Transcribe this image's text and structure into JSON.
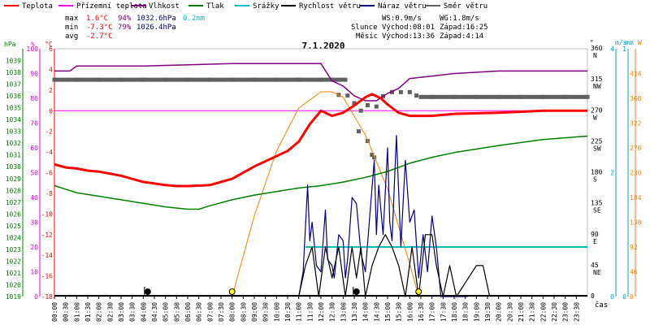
{
  "legend": [
    {
      "label": "Teplota",
      "color": "#ff0000"
    },
    {
      "label": "Přízemní teplota",
      "color": "#ff00ff"
    },
    {
      "label": "Vlhkost",
      "color": "#800080"
    },
    {
      "label": "Tlak",
      "color": "#008000"
    },
    {
      "label": "Srážky",
      "color": "#00c0c0"
    },
    {
      "label": "Rychlost větru",
      "color": "#000000"
    },
    {
      "label": "Náraz větru",
      "color": "#000080"
    },
    {
      "label": "Směr větru",
      "color": "#606060"
    }
  ],
  "stats": {
    "max_label": "max",
    "max_temp": "1.6°C",
    "max_hum": "94%",
    "max_press": "1032.6hPa",
    "max_rain": "0.2mm",
    "min_label": "min",
    "min_temp": "-7.3°C",
    "min_hum": "79%",
    "min_press": "1026.4hPa",
    "avg_label": "avg",
    "avg_temp": "-2.7°C",
    "ws": "WS:0.9m/s",
    "wg": "WG:1.8m/s",
    "sun_label": "Slunce",
    "sun_rise": "Východ:08:01",
    "sun_set": "Západ:16:25",
    "moon_label": "Měsíc",
    "moon_rise": "Východ:13:36",
    "moon_set": "Západ:4:14"
  },
  "title": "7.1.2020",
  "axis_units": {
    "hpa": "hPa",
    "pct": "%",
    "degc": "°C",
    "deg": "°",
    "ms": "m/s",
    "mm": "mm",
    "w": "W",
    "time": "čas"
  },
  "colors": {
    "temp": "#ff0000",
    "ground": "#ff00ff",
    "hum": "#800080",
    "press": "#008000",
    "rain": "#00c0c0",
    "wind": "#000000",
    "gust": "#000080",
    "dir": "#606060",
    "solar": "#ff8000",
    "axis_press": "#008000",
    "axis_hum": "#e000e0",
    "axis_temp": "#ff0000",
    "axis_ms": "#00a0c0",
    "axis_w": "#ff8000",
    "marker_sun": "#ffff00"
  },
  "chart_data": {
    "type": "line",
    "title": "7.1.2020",
    "x_range": [
      0,
      24
    ],
    "x_ticks": [
      "00:00",
      "00:30",
      "01:00",
      "01:30",
      "02:00",
      "02:30",
      "03:00",
      "03:30",
      "04:00",
      "04:30",
      "05:00",
      "05:30",
      "06:00",
      "06:30",
      "07:00",
      "07:30",
      "08:00",
      "08:30",
      "09:00",
      "09:30",
      "10:00",
      "10:30",
      "11:00",
      "11:30",
      "12:00",
      "12:30",
      "13:00",
      "13:30",
      "14:00",
      "14:30",
      "15:00",
      "15:30",
      "16:00",
      "16:30",
      "17:00",
      "17:30",
      "18:00",
      "18:30",
      "19:00",
      "19:30",
      "20:00",
      "20:30",
      "21:00",
      "21:30",
      "22:00",
      "22:30",
      "23:00",
      "23:30"
    ],
    "axes": {
      "pressure_hpa": {
        "range": [
          1019,
          1040
        ],
        "ticks": [
          "1039",
          "1038",
          "1037",
          "1036",
          "1035",
          "1034",
          "1033",
          "1032",
          "1031",
          "1030",
          "1029",
          "1028",
          "1027",
          "1026",
          "1025",
          "1024",
          "1023",
          "1022",
          "1021",
          "1020",
          "1019"
        ]
      },
      "humidity_pct": {
        "range": [
          0,
          100
        ],
        "ticks": [
          "100",
          "90",
          "80",
          "70",
          "60",
          "50",
          "40",
          "30",
          "20",
          "10",
          "0"
        ]
      },
      "temperature_c": {
        "range": [
          -18,
          6
        ],
        "ticks": [
          "6",
          "4",
          "2",
          "0",
          "-2",
          "-4",
          "-6",
          "-8",
          "-10",
          "-12",
          "-14",
          "-16",
          "-18"
        ]
      },
      "wind_dir_deg": {
        "range": [
          0,
          360
        ],
        "ticks": [
          {
            "deg": "360",
            "dir": "N"
          },
          {
            "deg": "315",
            "dir": "NW"
          },
          {
            "deg": "270",
            "dir": "W"
          },
          {
            "deg": "225",
            "dir": "SW"
          },
          {
            "deg": "180",
            "dir": "S"
          },
          {
            "deg": "135",
            "dir": "SE"
          },
          {
            "deg": "90",
            "dir": "E"
          },
          {
            "deg": "45",
            "dir": "NE"
          },
          {
            "deg": "0",
            "dir": ""
          }
        ]
      },
      "wind_ms": {
        "range": [
          0,
          4
        ],
        "ticks": [
          "4",
          "2",
          "0"
        ]
      },
      "rain_mm": {
        "range": [
          0,
          1
        ],
        "ticks": [
          "1",
          "0"
        ]
      },
      "solar_w": {
        "range": [
          0,
          460
        ],
        "ticks": [
          "414",
          "368",
          "322",
          "276",
          "230",
          "184",
          "138",
          "92",
          "46",
          "0"
        ]
      }
    },
    "series": [
      {
        "name": "Teplota",
        "axis": "temperature_c",
        "x": [
          0,
          0.5,
          1,
          1.5,
          2,
          3,
          4,
          5,
          5.5,
          6,
          7,
          8,
          9,
          10,
          10.5,
          11,
          11.5,
          12,
          12.5,
          13,
          13.5,
          14,
          14.3,
          14.7,
          15,
          15.5,
          16,
          17,
          18,
          20,
          22,
          24
        ],
        "y": [
          -5.2,
          -5.5,
          -5.6,
          -5.8,
          -5.9,
          -6.3,
          -6.9,
          -7.2,
          -7.3,
          -7.3,
          -7.2,
          -6.6,
          -5.4,
          -4.4,
          -3.9,
          -3.0,
          -1.3,
          0.0,
          -0.5,
          -0.2,
          0.5,
          1.3,
          1.6,
          1.2,
          0.6,
          -0.2,
          -0.5,
          -0.5,
          -0.3,
          -0.2,
          0.0,
          0.0
        ]
      },
      {
        "name": "Vlhkost",
        "axis": "humidity_pct",
        "x": [
          0,
          0.7,
          1,
          4,
          8,
          9,
          10,
          11,
          11.5,
          12,
          12.5,
          13,
          13.5,
          14,
          14.5,
          15,
          15.5,
          16,
          17,
          18,
          20,
          24
        ],
        "y": [
          91,
          91,
          93,
          93,
          94,
          94,
          94,
          94,
          94,
          94,
          87,
          85,
          81,
          79,
          79,
          82,
          84,
          88,
          89,
          90,
          91,
          91
        ]
      },
      {
        "name": "Tlak",
        "axis": "pressure_hpa",
        "x": [
          0,
          1,
          2,
          3,
          4,
          5,
          6,
          6.5,
          7,
          8,
          9,
          10,
          11,
          12,
          13,
          14,
          15,
          16,
          17,
          18,
          20,
          22,
          24
        ],
        "y": [
          1028.4,
          1027.8,
          1027.5,
          1027.2,
          1026.9,
          1026.6,
          1026.4,
          1026.4,
          1026.7,
          1027.2,
          1027.6,
          1027.9,
          1028.2,
          1028.4,
          1028.7,
          1029.1,
          1029.6,
          1030.3,
          1030.8,
          1031.2,
          1031.8,
          1032.3,
          1032.6
        ]
      },
      {
        "name": "Srážky",
        "axis": "rain_mm",
        "x": [
          11.3,
          24
        ],
        "y": [
          0.2,
          0.2
        ]
      },
      {
        "name": "Solar",
        "axis": "solar_w",
        "x": [
          8.0,
          9,
          10,
          11,
          12,
          12.5,
          13,
          14,
          15,
          16,
          16.4
        ],
        "y": [
          0,
          150,
          270,
          350,
          380,
          380,
          370,
          300,
          200,
          60,
          0
        ]
      },
      {
        "name": "Náraz větru",
        "axis": "wind_ms",
        "x": [
          11.0,
          11.2,
          11.4,
          11.5,
          11.6,
          11.8,
          12.0,
          12.2,
          12.3,
          12.5,
          12.6,
          12.8,
          13.0,
          13.1,
          13.2,
          13.4,
          13.6,
          13.8,
          14.0,
          14.2,
          14.4,
          14.5,
          14.6,
          14.8,
          15.0,
          15.1,
          15.2,
          15.4,
          15.6,
          15.7,
          15.8,
          16.0,
          16.2,
          16.4,
          16.6,
          16.8,
          17.0,
          17.2,
          17.4,
          17.6,
          18.0,
          18.2,
          18.4,
          18.6
        ],
        "y": [
          0,
          0.4,
          1.8,
          0.9,
          1.2,
          0.5,
          0.4,
          1.4,
          0.6,
          0.5,
          0.3,
          1.0,
          0.9,
          0.3,
          0.6,
          1.6,
          1.5,
          0.7,
          0.4,
          1.3,
          2.2,
          1.0,
          1.8,
          1.0,
          2.4,
          1.2,
          0.9,
          2.6,
          0.8,
          1.5,
          2.2,
          1.2,
          1.4,
          0.3,
          1.0,
          0.4,
          1.3,
          0.8,
          0.0,
          0.0,
          0.0,
          0.0,
          0.0,
          0.0
        ]
      },
      {
        "name": "Rychlost větru",
        "axis": "wind_ms",
        "x": [
          11.0,
          11.3,
          11.6,
          11.9,
          12.2,
          12.5,
          12.8,
          13.1,
          13.4,
          13.6,
          13.8,
          14.0,
          14.3,
          14.6,
          14.9,
          15.2,
          15.5,
          15.8,
          16.1,
          16.4,
          16.7,
          17.0,
          17.2,
          17.5,
          17.8,
          18.1,
          19.0,
          19.3,
          19.6
        ],
        "y": [
          0,
          0.5,
          0.8,
          0,
          0.8,
          0.3,
          0.8,
          0,
          0.8,
          0.3,
          0.8,
          0,
          0.5,
          0.8,
          1.0,
          0.8,
          0.5,
          0,
          0.8,
          0,
          1.0,
          1.0,
          0.5,
          0,
          0.5,
          0,
          0.5,
          0.5,
          0
        ]
      },
      {
        "name": "Směr větru",
        "axis": "wind_dir_deg",
        "points": [
          [
            0,
            315
          ],
          [
            1,
            315
          ],
          [
            2,
            315
          ],
          [
            3,
            315
          ],
          [
            4,
            315
          ],
          [
            5,
            315
          ],
          [
            6,
            315
          ],
          [
            7,
            315
          ],
          [
            8,
            315
          ],
          [
            9,
            315
          ],
          [
            10,
            315
          ],
          [
            11,
            315
          ],
          [
            12,
            315
          ],
          [
            12.5,
            315
          ],
          [
            13.1,
            315
          ],
          [
            12.8,
            293
          ],
          [
            13.2,
            292
          ],
          [
            13.5,
            281
          ],
          [
            13.8,
            270
          ],
          [
            14.1,
            278
          ],
          [
            14.5,
            276
          ],
          [
            14.8,
            291
          ],
          [
            15.2,
            297
          ],
          [
            15.6,
            297
          ],
          [
            16.0,
            297
          ],
          [
            16.3,
            292
          ],
          [
            16.5,
            290
          ],
          [
            17,
            290
          ],
          [
            18,
            290
          ],
          [
            19,
            290
          ],
          [
            20,
            290
          ],
          [
            21,
            290
          ],
          [
            22,
            290
          ],
          [
            23,
            290
          ],
          [
            24,
            290
          ],
          [
            13.7,
            240
          ],
          [
            14.1,
            226
          ],
          [
            14.3,
            206
          ],
          [
            14.4,
            202
          ]
        ]
      }
    ],
    "markers": [
      {
        "name": "sunrise",
        "x": 8.0,
        "color": "#ffff00"
      },
      {
        "name": "sunset",
        "x": 16.4,
        "color": "#ffff00"
      },
      {
        "name": "moonrise",
        "x": 13.6,
        "color": "#000000"
      },
      {
        "name": "moonset",
        "x": 4.2,
        "color": "#000000"
      }
    ],
    "horizontal_lines": [
      {
        "axis": "temperature_c",
        "value": 0,
        "color": "#ff00ff"
      }
    ]
  }
}
